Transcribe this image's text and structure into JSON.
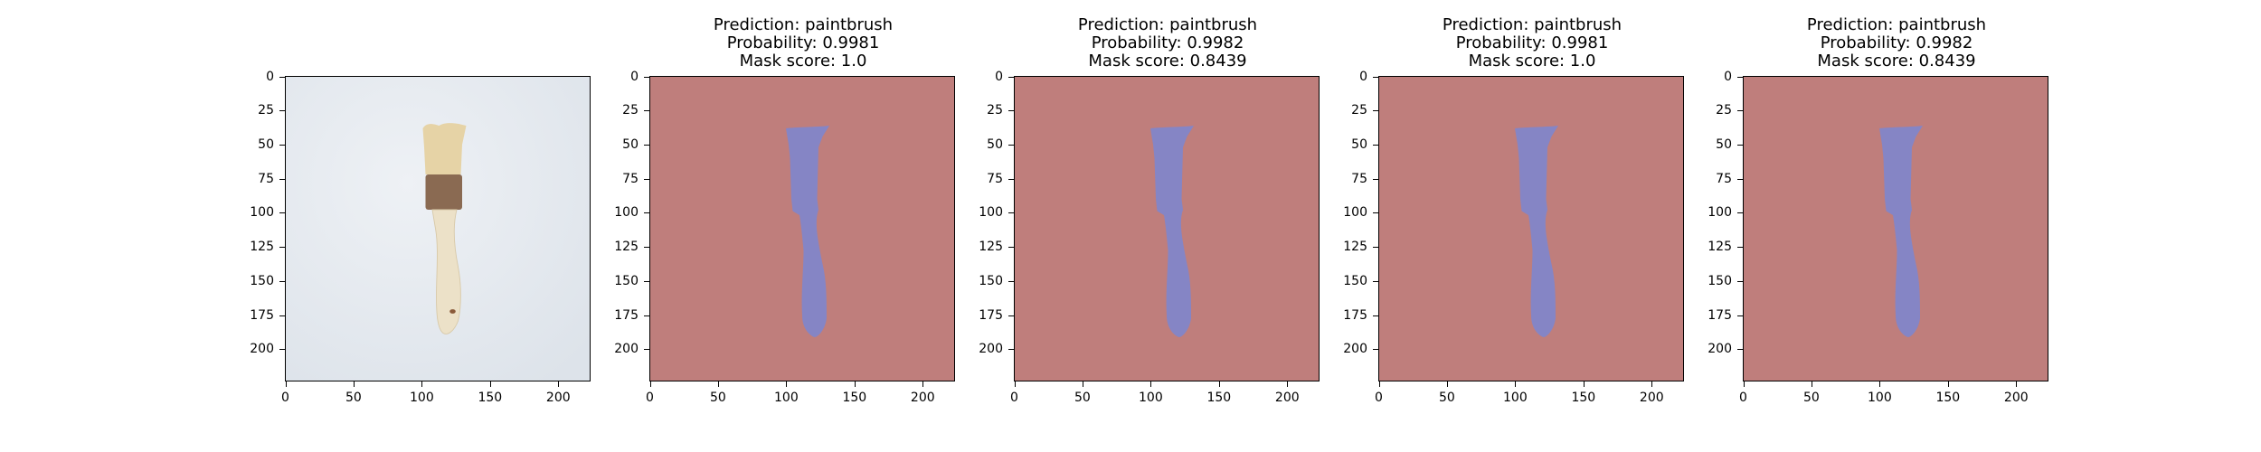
{
  "colors": {
    "background_overlay": "#bf7e7c",
    "object_overlay": "#8585c5",
    "photo_background": "#dde3ea",
    "bristles": "#e6d3a6",
    "ferrule": "#8a6a52",
    "handle": "#ece1c8"
  },
  "axis": {
    "x_ticks": [
      "0",
      "50",
      "100",
      "150",
      "200"
    ],
    "y_ticks": [
      "0",
      "25",
      "50",
      "75",
      "100",
      "125",
      "150",
      "175",
      "200"
    ]
  },
  "panels": [
    {
      "kind": "image",
      "title_lines": []
    },
    {
      "kind": "mask",
      "title_lines": [
        "Prediction: paintbrush",
        "Probability: 0.9981",
        "Mask score: 1.0"
      ]
    },
    {
      "kind": "mask",
      "title_lines": [
        "Prediction: paintbrush",
        "Probability: 0.9982",
        "Mask score: 0.8439"
      ]
    },
    {
      "kind": "mask",
      "title_lines": [
        "Prediction: paintbrush",
        "Probability: 0.9981",
        "Mask score: 1.0"
      ]
    },
    {
      "kind": "mask",
      "title_lines": [
        "Prediction: paintbrush",
        "Probability: 0.9982",
        "Mask score: 0.8439"
      ]
    }
  ]
}
